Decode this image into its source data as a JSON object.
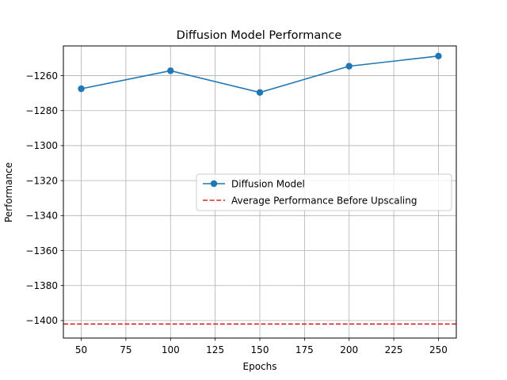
{
  "chart_data": {
    "type": "line",
    "title": "Diffusion Model Performance",
    "xlabel": "Epochs",
    "ylabel": "Performance",
    "xlim": [
      40,
      260
    ],
    "ylim": [
      -1410,
      -1243
    ],
    "xticks": [
      50,
      75,
      100,
      125,
      150,
      175,
      200,
      225,
      250
    ],
    "yticks": [
      -1260,
      -1280,
      -1300,
      -1320,
      -1340,
      -1360,
      -1380,
      -1400
    ],
    "grid": true,
    "legend_position": "center-right",
    "series": [
      {
        "name": "Diffusion Model",
        "color": "#1f77b4",
        "marker": "circle",
        "x": [
          50,
          100,
          150,
          200,
          250
        ],
        "y": [
          -1267.5,
          -1257.2,
          -1269.6,
          -1254.6,
          -1248.8
        ]
      }
    ],
    "reference_lines": [
      {
        "name": "Average Performance Before Upscaling",
        "color": "#d62728",
        "style": "dashed",
        "y": -1402
      }
    ]
  }
}
